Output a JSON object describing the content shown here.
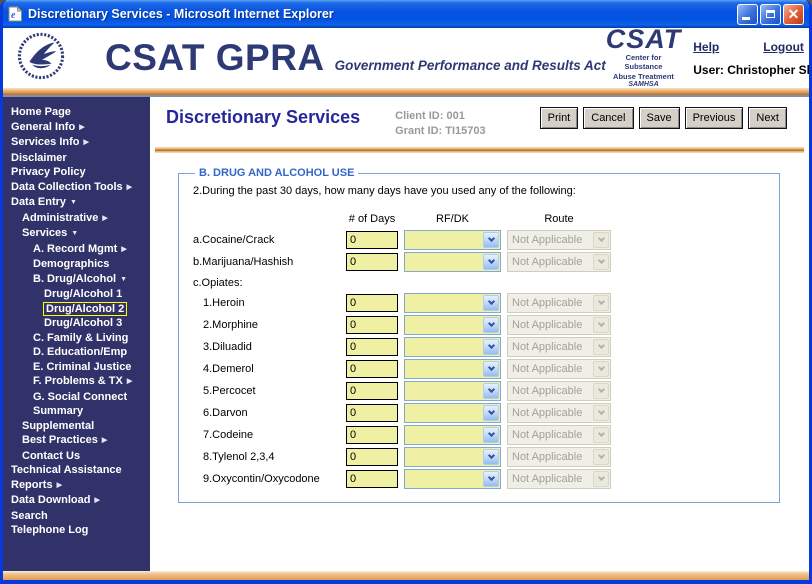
{
  "window": {
    "title": "Discretionary Services - Microsoft Internet Explorer"
  },
  "header": {
    "brand": "CSAT GPRA",
    "tagline": "Government Performance and Results Act",
    "csat": {
      "title": "CSAT",
      "line1": "Center for Substance",
      "line2": "Abuse Treatment",
      "line3": "SAMHSA"
    },
    "help_label": "Help",
    "logout_label": "Logout",
    "user_label": "User: Christopher Shumway"
  },
  "sidebar": {
    "items": [
      {
        "id": "home-page",
        "label": "Home Page",
        "indent": 0,
        "arrow": null,
        "active": false
      },
      {
        "id": "general-info",
        "label": "General Info",
        "indent": 0,
        "arrow": "right",
        "active": false
      },
      {
        "id": "services-info",
        "label": "Services Info",
        "indent": 0,
        "arrow": "right",
        "active": false
      },
      {
        "id": "disclaimer",
        "label": "Disclaimer",
        "indent": 0,
        "arrow": null,
        "active": false
      },
      {
        "id": "privacy-policy",
        "label": "Privacy Policy",
        "indent": 0,
        "arrow": null,
        "active": false
      },
      {
        "id": "data-collection-tools",
        "label": "Data Collection Tools",
        "indent": 0,
        "arrow": "right",
        "active": false
      },
      {
        "id": "data-entry",
        "label": "Data Entry",
        "indent": 0,
        "arrow": "down",
        "active": false
      },
      {
        "id": "administrative",
        "label": "Administrative",
        "indent": 1,
        "arrow": "right",
        "active": false
      },
      {
        "id": "services",
        "label": "Services",
        "indent": 1,
        "arrow": "down",
        "active": false
      },
      {
        "id": "a-record-mgmt",
        "label": "A. Record Mgmt",
        "indent": 2,
        "arrow": "right",
        "active": false
      },
      {
        "id": "demographics",
        "label": "Demographics",
        "indent": 2,
        "arrow": null,
        "active": false
      },
      {
        "id": "b-drug-alcohol",
        "label": "B. Drug/Alcohol",
        "indent": 2,
        "arrow": "down",
        "active": false
      },
      {
        "id": "drug-alcohol-1",
        "label": "Drug/Alcohol 1",
        "indent": 3,
        "arrow": null,
        "active": false
      },
      {
        "id": "drug-alcohol-2",
        "label": "Drug/Alcohol 2",
        "indent": 3,
        "arrow": null,
        "active": true
      },
      {
        "id": "drug-alcohol-3",
        "label": "Drug/Alcohol 3",
        "indent": 3,
        "arrow": null,
        "active": false
      },
      {
        "id": "c-family-living",
        "label": "C. Family & Living",
        "indent": 2,
        "arrow": null,
        "active": false
      },
      {
        "id": "d-education-emp",
        "label": "D. Education/Emp",
        "indent": 2,
        "arrow": null,
        "active": false
      },
      {
        "id": "e-criminal-justice",
        "label": "E. Criminal Justice",
        "indent": 2,
        "arrow": null,
        "active": false
      },
      {
        "id": "f-problems-tx",
        "label": "F. Problems & TX",
        "indent": 2,
        "arrow": "right",
        "active": false
      },
      {
        "id": "g-social-connect",
        "label": "G. Social Connect",
        "indent": 2,
        "arrow": null,
        "active": false
      },
      {
        "id": "summary",
        "label": "Summary",
        "indent": 2,
        "arrow": null,
        "active": false
      },
      {
        "id": "supplemental",
        "label": "Supplemental",
        "indent": 1,
        "arrow": null,
        "active": false
      },
      {
        "id": "best-practices",
        "label": "Best Practices",
        "indent": 1,
        "arrow": "right",
        "active": false
      },
      {
        "id": "contact-us",
        "label": "Contact Us",
        "indent": 1,
        "arrow": null,
        "active": false
      },
      {
        "id": "technical-assistance",
        "label": "Technical Assistance",
        "indent": 0,
        "arrow": null,
        "active": false
      },
      {
        "id": "reports",
        "label": "Reports",
        "indent": 0,
        "arrow": "right",
        "active": false
      },
      {
        "id": "data-download",
        "label": "Data Download",
        "indent": 0,
        "arrow": "right",
        "active": false
      },
      {
        "id": "search",
        "label": "Search",
        "indent": 0,
        "arrow": null,
        "active": false
      },
      {
        "id": "telephone-log",
        "label": "Telephone Log",
        "indent": 0,
        "arrow": null,
        "active": false
      }
    ]
  },
  "content": {
    "page_title": "Discretionary Services",
    "client_id": "Client ID: 001",
    "grant_id": "Grant ID: TI15703",
    "buttons": [
      "Print",
      "Cancel",
      "Save",
      "Previous",
      "Next"
    ],
    "form": {
      "legend": "B. DRUG AND ALCOHOL USE",
      "question": "2.During the past 30 days, how many days have you used any of the following:",
      "columns": [
        "# of Days",
        "RF/DK",
        "Route"
      ],
      "rows": [
        {
          "id": "cocaine-crack",
          "label": "a.Cocaine/Crack",
          "indent": 0,
          "fields": true,
          "days": "0",
          "rfdk": "",
          "route": "Not Applicable"
        },
        {
          "id": "marijuana-hashish",
          "label": "b.Marijuana/Hashish",
          "indent": 0,
          "fields": true,
          "days": "0",
          "rfdk": "",
          "route": "Not Applicable"
        },
        {
          "id": "opiates",
          "label": "c.Opiates:",
          "indent": 0,
          "fields": false
        },
        {
          "id": "heroin",
          "label": "1.Heroin",
          "indent": 1,
          "fields": true,
          "days": "0",
          "rfdk": "",
          "route": "Not Applicable"
        },
        {
          "id": "morphine",
          "label": "2.Morphine",
          "indent": 1,
          "fields": true,
          "days": "0",
          "rfdk": "",
          "route": "Not Applicable"
        },
        {
          "id": "diluadid",
          "label": "3.Diluadid",
          "indent": 1,
          "fields": true,
          "days": "0",
          "rfdk": "",
          "route": "Not Applicable"
        },
        {
          "id": "demerol",
          "label": "4.Demerol",
          "indent": 1,
          "fields": true,
          "days": "0",
          "rfdk": "",
          "route": "Not Applicable"
        },
        {
          "id": "percocet",
          "label": "5.Percocet",
          "indent": 1,
          "fields": true,
          "days": "0",
          "rfdk": "",
          "route": "Not Applicable"
        },
        {
          "id": "darvon",
          "label": "6.Darvon",
          "indent": 1,
          "fields": true,
          "days": "0",
          "rfdk": "",
          "route": "Not Applicable"
        },
        {
          "id": "codeine",
          "label": "7.Codeine",
          "indent": 1,
          "fields": true,
          "days": "0",
          "rfdk": "",
          "route": "Not Applicable"
        },
        {
          "id": "tylenol-234",
          "label": "8.Tylenol 2,3,4",
          "indent": 1,
          "fields": true,
          "days": "0",
          "rfdk": "",
          "route": "Not Applicable"
        },
        {
          "id": "oxycontin-oxycodone",
          "label": "9.Oxycontin/Oxycodone",
          "indent": 1,
          "fields": true,
          "days": "0",
          "rfdk": "",
          "route": "Not Applicable"
        }
      ]
    }
  },
  "colors": {
    "titlebar_blue": "#0553E2",
    "window_border": "#0837DC",
    "sidebar_bg": "#32326A",
    "brand_navy": "#2E3A75",
    "accent_orange": "#E8A05C",
    "field_yellow": "#F0F0A4",
    "legend_blue": "#3366CC",
    "page_title_blue": "#26269A",
    "id_text_gray": "#999999",
    "disabled_text": "#A2A298",
    "active_item_outline": "#FFFF00",
    "button_face": "#D4D0C8"
  }
}
